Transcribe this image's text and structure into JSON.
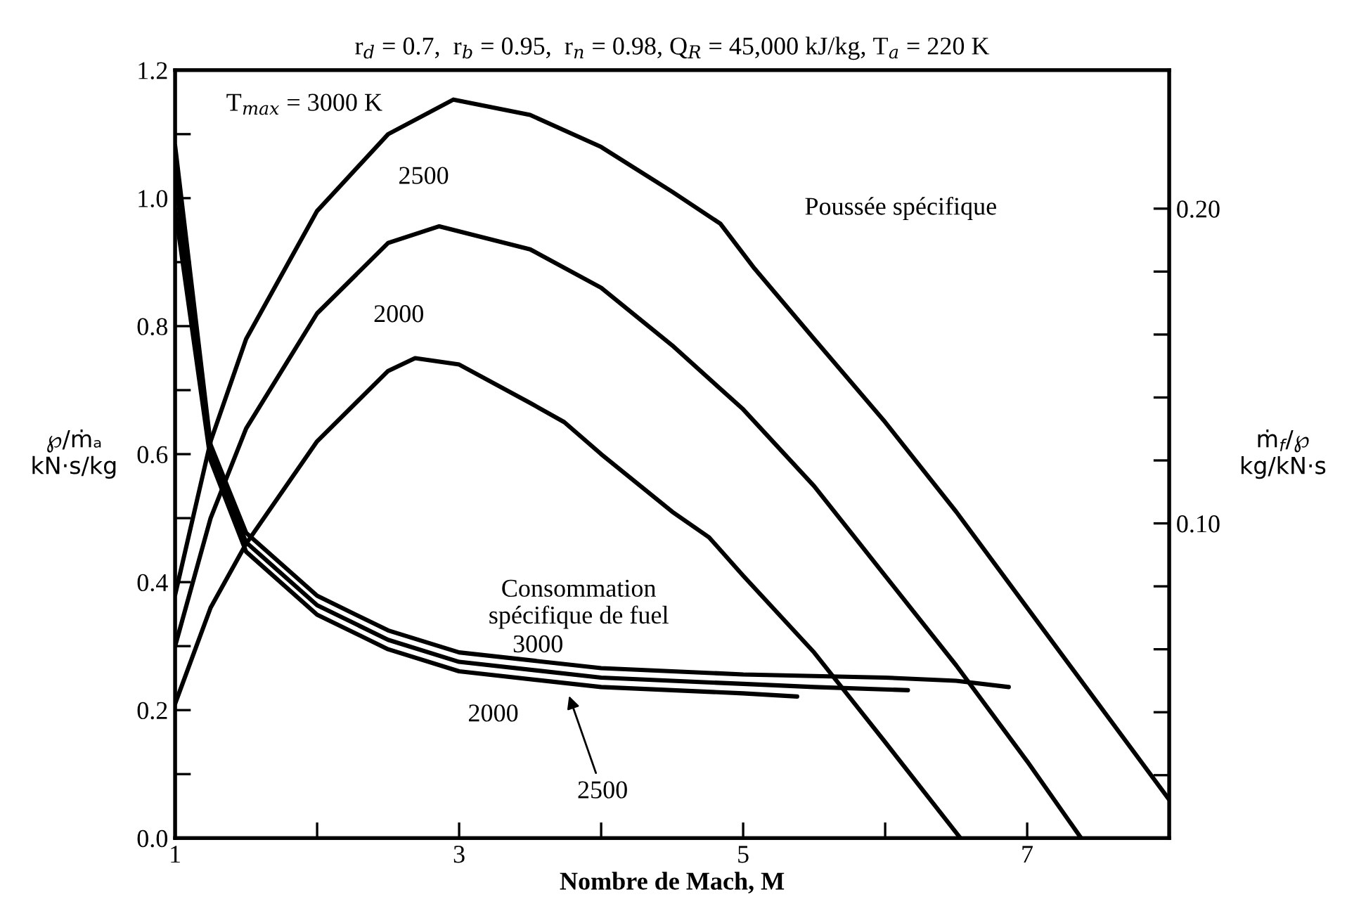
{
  "chart_data": {
    "type": "line",
    "title": "r$_{d}$ = 0.7,  r$_{b}$ = 0.95,  r$_{n}$ = 0.98, Q$_{R}$ = 45,000 kJ/kg, T$_{a}$ = 220 K",
    "xlabel": "Nombre de Mach, M",
    "ylabel": "℘/ṁₐ\nkN·s/kg",
    "y2label": "ṁ$_{f}$/℘\nkg/kN·s",
    "series": [
      {
        "color": "#000000",
        "x": [
          1,
          1.25,
          1.5,
          2,
          2.5,
          2.96,
          3.5,
          4,
          4.5,
          4.84,
          5.08,
          5.5,
          6,
          6.5,
          7,
          7.5,
          8
        ],
        "values": [
          0.38,
          0.62,
          0.78,
          0.98,
          1.1,
          1.154,
          1.13,
          1.08,
          1.01,
          0.96,
          0.89,
          0.78,
          0.65,
          0.51,
          0.36,
          0.21,
          0.06
        ]
      },
      {
        "color": "#000000",
        "x": [
          1,
          1.25,
          1.5,
          2,
          2.5,
          2.86,
          3.5,
          4,
          4.5,
          5,
          5.5,
          6,
          6.5,
          7,
          7.38
        ],
        "values": [
          0.3,
          0.5,
          0.64,
          0.82,
          0.93,
          0.956,
          0.92,
          0.86,
          0.77,
          0.67,
          0.55,
          0.41,
          0.27,
          0.12,
          0
        ]
      },
      {
        "color": "#000000",
        "x": [
          1,
          1.25,
          1.5,
          2,
          2.5,
          2.69,
          3,
          3.5,
          3.74,
          4,
          4.5,
          4.76,
          5,
          5.5,
          6,
          6.53
        ],
        "values": [
          0.21,
          0.36,
          0.46,
          0.62,
          0.73,
          0.75,
          0.74,
          0.68,
          0.65,
          0.6,
          0.51,
          0.47,
          0.41,
          0.29,
          0.15,
          0
        ]
      },
      {
        "color": "#000000",
        "axis": "y2",
        "x": [
          1,
          1.25,
          1.5,
          2,
          2.5,
          3,
          4,
          5,
          6,
          6.5,
          6.87
        ],
        "values": [
          0.22,
          0.125,
          0.097,
          0.077,
          0.066,
          0.059,
          0.054,
          0.052,
          0.051,
          0.05,
          0.048
        ]
      },
      {
        "color": "#000000",
        "axis": "y2",
        "x": [
          1,
          1.25,
          1.5,
          2,
          2.5,
          3,
          4,
          5,
          5.5,
          6.16
        ],
        "values": [
          0.21,
          0.122,
          0.094,
          0.074,
          0.063,
          0.056,
          0.051,
          0.049,
          0.048,
          0.047
        ]
      },
      {
        "color": "#000000",
        "axis": "y2",
        "x": [
          1,
          1.25,
          1.5,
          2,
          2.5,
          3,
          4,
          5,
          5.38
        ],
        "values": [
          0.2,
          0.12,
          0.091,
          0.071,
          0.06,
          0.053,
          0.048,
          0.046,
          0.045
        ]
      }
    ],
    "annotations": [
      "T$_{max}$ = 3000 K",
      "2500",
      "2000",
      "Poussée spécifique",
      "Consommation\nspécifique de fuel",
      "3000",
      "2000",
      "2500"
    ],
    "xlim": [
      1,
      8
    ],
    "xticks": [
      1,
      {
        "value": 2,
        "label": null
      },
      3,
      {
        "value": 4,
        "label": null
      },
      5,
      {
        "value": 6,
        "label": null
      },
      7
    ],
    "ylim": [
      0,
      1.2
    ],
    "yticks": [
      {
        "value": 0,
        "label": "0.0"
      },
      {
        "value": 0.1,
        "label": null
      },
      0.2,
      {
        "value": 0.3,
        "label": null
      },
      0.4,
      {
        "value": 0.5,
        "label": null
      },
      0.6,
      {
        "value": 0.7,
        "label": null
      },
      0.8,
      {
        "value": 0.9,
        "label": null
      },
      {
        "value": 1.0,
        "label": "1.0"
      },
      {
        "value": 1.1,
        "label": null
      },
      1.2
    ],
    "y2lim": [
      0,
      0.244
    ],
    "y2ticks": [
      {
        "value": 0.02,
        "label": null
      },
      {
        "value": 0.04,
        "label": null
      },
      {
        "value": 0.06,
        "label": null
      },
      {
        "value": 0.08,
        "label": null
      },
      {
        "value": 0.1,
        "label": "0.10"
      },
      {
        "value": 0.12,
        "label": null
      },
      {
        "value": 0.14,
        "label": null
      },
      {
        "value": 0.16,
        "label": null
      },
      {
        "value": 0.18,
        "label": null
      },
      {
        "value": 0.2,
        "label": "0.20"
      }
    ],
    "grid": false,
    "legend": false,
    "marker": "none",
    "line_style": "solid"
  }
}
